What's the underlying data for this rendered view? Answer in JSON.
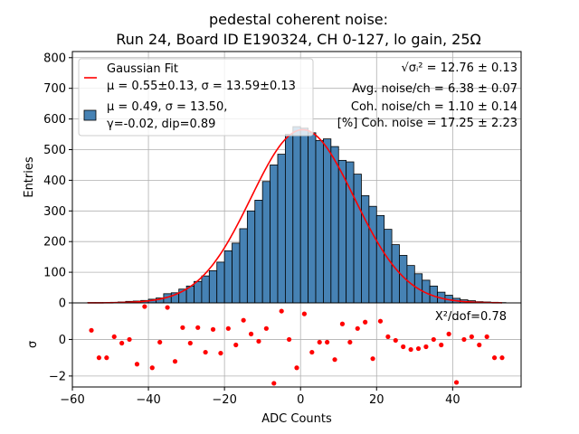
{
  "chart_data": [
    {
      "type": "bar",
      "title_line1": "pedestal coherent noise:",
      "title_line2": "Run 24, Board ID E190324, CH 0-127, lo gain, 25Ω",
      "ylabel": "Entries",
      "xlim": [
        -60,
        58
      ],
      "ylim": [
        0,
        820
      ],
      "yticks": [
        0,
        100,
        200,
        300,
        400,
        500,
        600,
        700,
        800
      ],
      "bin_width": 2,
      "bin_centers": [
        -55,
        -53,
        -51,
        -49,
        -47,
        -45,
        -43,
        -41,
        -39,
        -37,
        -35,
        -33,
        -31,
        -29,
        -27,
        -25,
        -23,
        -21,
        -19,
        -17,
        -15,
        -13,
        -11,
        -9,
        -7,
        -5,
        -3,
        -1,
        1,
        3,
        5,
        7,
        9,
        11,
        13,
        15,
        17,
        19,
        21,
        23,
        25,
        27,
        29,
        31,
        33,
        35,
        37,
        39,
        41,
        43,
        45,
        47,
        49,
        51,
        53
      ],
      "values": [
        1,
        1,
        1,
        2,
        3,
        5,
        6,
        8,
        12,
        16,
        30,
        33,
        45,
        55,
        70,
        88,
        105,
        133,
        170,
        195,
        242,
        300,
        335,
        396,
        450,
        485,
        550,
        575,
        570,
        555,
        530,
        535,
        510,
        465,
        460,
        420,
        350,
        315,
        285,
        240,
        190,
        155,
        122,
        95,
        74,
        55,
        35,
        25,
        15,
        10,
        7,
        4,
        3,
        2,
        1
      ],
      "legend": {
        "fit_label": "Gaussian Fit",
        "fit_params": "μ = 0.55±0.13, σ = 13.59±0.13",
        "hist_line1": "μ = 0.49, σ = 13.50,",
        "hist_line2": "γ=-0.02, dip=0.89",
        "placement": "top-left"
      },
      "annotations": {
        "sigma_expr": "√σᵢ²",
        "sigma_value": " = 12.76 ± 0.13",
        "avg_noise": "Avg. noise/ch = 6.38 ± 0.07",
        "coh_noise": "Coh. noise/ch = 1.10 ± 0.14",
        "coh_pct": "[%] Coh. noise = 17.25  ± 2.23"
      },
      "fit": {
        "mu": 0.55,
        "sigma": 13.59,
        "amplitude": 565
      },
      "colors": {
        "bar": "#4682b4",
        "fit": "#ff0000",
        "grid": "#b0b0b0"
      },
      "grid": true
    },
    {
      "type": "scatter",
      "xlabel": "ADC Counts",
      "ylabel": "σ",
      "xlim": [
        -60,
        58
      ],
      "ylim": [
        -2.6,
        2.0
      ],
      "yticks": [
        -2,
        0
      ],
      "xticks": [
        -60,
        -40,
        -20,
        0,
        20,
        40
      ],
      "chi2_label": "X²/dof=0.78",
      "x": [
        -55,
        -53,
        -51,
        -49,
        -47,
        -45,
        -43,
        -41,
        -39,
        -37,
        -35,
        -33,
        -31,
        -29,
        -27,
        -25,
        -23,
        -21,
        -19,
        -17,
        -15,
        -13,
        -11,
        -9,
        -7,
        -5,
        -3,
        -1,
        1,
        3,
        5,
        7,
        9,
        11,
        13,
        15,
        17,
        19,
        21,
        23,
        25,
        27,
        29,
        31,
        33,
        35,
        37,
        39,
        41,
        43,
        45,
        47,
        49,
        51,
        53
      ],
      "y": [
        0.5,
        -1.0,
        -1.0,
        0.15,
        -0.2,
        0.0,
        -1.35,
        1.8,
        -1.55,
        -0.15,
        1.75,
        -1.2,
        0.65,
        -0.2,
        0.65,
        -0.7,
        0.55,
        -0.75,
        0.6,
        -0.3,
        1.05,
        0.3,
        -0.1,
        0.6,
        -2.4,
        1.55,
        0.0,
        -1.55,
        1.4,
        -0.7,
        -0.15,
        -0.15,
        -1.1,
        0.85,
        -0.15,
        0.6,
        0.95,
        -1.05,
        1.0,
        0.15,
        -0.05,
        -0.4,
        -0.55,
        -0.5,
        -0.4,
        0.0,
        -0.3,
        0.3,
        -2.35,
        0.0,
        0.15,
        -0.3,
        0.15,
        -1.0,
        -1.0
      ],
      "colors": {
        "point": "#ff0000",
        "grid": "#b0b0b0"
      },
      "grid": true
    }
  ]
}
